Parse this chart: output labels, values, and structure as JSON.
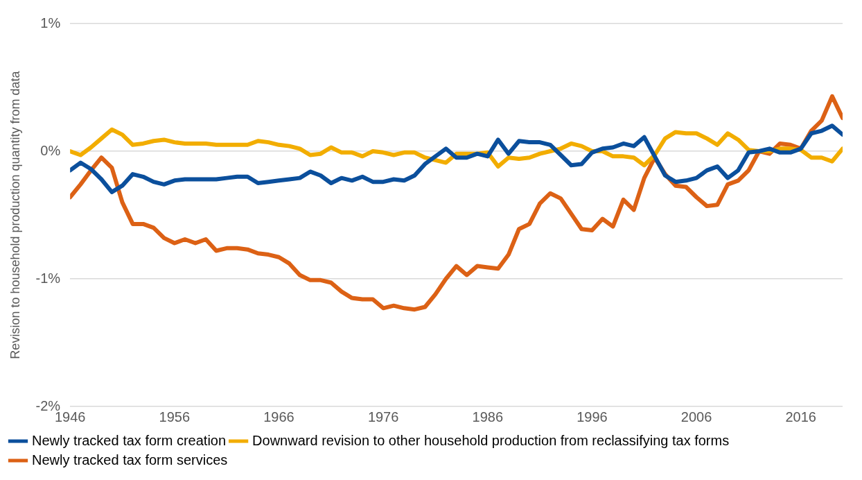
{
  "chart_data": {
    "type": "line",
    "ylabel": "Revision to household production quantity from data",
    "x": [
      1946,
      1947,
      1948,
      1949,
      1950,
      1951,
      1952,
      1953,
      1954,
      1955,
      1956,
      1957,
      1958,
      1959,
      1960,
      1961,
      1962,
      1963,
      1964,
      1965,
      1966,
      1967,
      1968,
      1969,
      1970,
      1971,
      1972,
      1973,
      1974,
      1975,
      1976,
      1977,
      1978,
      1979,
      1980,
      1981,
      1982,
      1983,
      1984,
      1985,
      1986,
      1987,
      1988,
      1989,
      1990,
      1991,
      1992,
      1993,
      1994,
      1995,
      1996,
      1997,
      1998,
      1999,
      2000,
      2001,
      2002,
      2003,
      2004,
      2005,
      2006,
      2007,
      2008,
      2009,
      2010,
      2011,
      2012,
      2013,
      2014,
      2015,
      2016,
      2017,
      2018,
      2019,
      2020
    ],
    "xlim": [
      1946,
      2020
    ],
    "xticks": [
      1946,
      1956,
      1966,
      1976,
      1986,
      1996,
      2006,
      2016
    ],
    "ylim": [
      -2,
      1
    ],
    "yticks": [
      {
        "value": 1,
        "label": "1%"
      },
      {
        "value": 0,
        "label": "0%"
      },
      {
        "value": -1,
        "label": "-1%"
      },
      {
        "value": -2,
        "label": "-2%"
      }
    ],
    "grid": "y",
    "legend": "bottom left",
    "marker": "none",
    "line_style": "solid",
    "series": [
      {
        "name": "Newly tracked tax form creation",
        "color": "#0b4f9c",
        "values": [
          -0.15,
          -0.09,
          -0.14,
          -0.22,
          -0.32,
          -0.27,
          -0.18,
          -0.2,
          -0.24,
          -0.26,
          -0.23,
          -0.22,
          -0.22,
          -0.22,
          -0.22,
          -0.21,
          -0.2,
          -0.2,
          -0.25,
          -0.24,
          -0.23,
          -0.22,
          -0.21,
          -0.16,
          -0.19,
          -0.25,
          -0.21,
          -0.23,
          -0.2,
          -0.24,
          -0.24,
          -0.22,
          -0.23,
          -0.19,
          -0.1,
          -0.04,
          0.02,
          -0.05,
          -0.05,
          -0.02,
          -0.04,
          0.09,
          -0.02,
          0.08,
          0.07,
          0.07,
          0.05,
          -0.03,
          -0.11,
          -0.1,
          -0.01,
          0.02,
          0.03,
          0.06,
          0.04,
          0.11,
          -0.04,
          -0.19,
          -0.24,
          -0.23,
          -0.21,
          -0.15,
          -0.12,
          -0.21,
          -0.15,
          -0.01,
          0.0,
          0.02,
          -0.01,
          -0.01,
          0.02,
          0.14,
          0.16,
          0.2,
          0.13
        ]
      },
      {
        "name": "Downward revision to other household production from reclassifying tax forms",
        "color": "#f2ad00",
        "values": [
          0.0,
          -0.03,
          0.03,
          0.1,
          0.17,
          0.13,
          0.05,
          0.06,
          0.08,
          0.09,
          0.07,
          0.06,
          0.06,
          0.06,
          0.05,
          0.05,
          0.05,
          0.05,
          0.08,
          0.07,
          0.05,
          0.04,
          0.02,
          -0.03,
          -0.02,
          0.03,
          -0.01,
          -0.01,
          -0.04,
          0.0,
          -0.01,
          -0.03,
          -0.01,
          -0.01,
          -0.05,
          -0.07,
          -0.09,
          -0.02,
          -0.02,
          -0.02,
          -0.01,
          -0.12,
          -0.05,
          -0.06,
          -0.05,
          -0.02,
          0.0,
          0.02,
          0.06,
          0.04,
          0.0,
          0.0,
          -0.04,
          -0.04,
          -0.05,
          -0.11,
          -0.03,
          0.1,
          0.15,
          0.14,
          0.14,
          0.1,
          0.05,
          0.14,
          0.09,
          0.01,
          0.0,
          0.0,
          0.02,
          0.02,
          0.01,
          -0.05,
          -0.05,
          -0.08,
          0.02
        ]
      },
      {
        "name": "Newly tracked tax form services",
        "color": "#dc6115",
        "values": [
          -0.36,
          -0.26,
          -0.15,
          -0.05,
          -0.13,
          -0.4,
          -0.57,
          -0.57,
          -0.6,
          -0.68,
          -0.72,
          -0.69,
          -0.72,
          -0.69,
          -0.78,
          -0.76,
          -0.76,
          -0.77,
          -0.8,
          -0.81,
          -0.83,
          -0.88,
          -0.97,
          -1.01,
          -1.01,
          -1.03,
          -1.1,
          -1.15,
          -1.16,
          -1.16,
          -1.23,
          -1.21,
          -1.23,
          -1.24,
          -1.22,
          -1.12,
          -1.0,
          -0.9,
          -0.97,
          -0.9,
          -0.91,
          -0.92,
          -0.81,
          -0.61,
          -0.57,
          -0.41,
          -0.33,
          -0.37,
          -0.49,
          -0.61,
          -0.62,
          -0.53,
          -0.59,
          -0.38,
          -0.46,
          -0.21,
          -0.05,
          -0.18,
          -0.27,
          -0.28,
          -0.36,
          -0.43,
          -0.42,
          -0.26,
          -0.23,
          -0.15,
          0.0,
          -0.02,
          0.06,
          0.05,
          0.02,
          0.16,
          0.24,
          0.43,
          0.26
        ]
      }
    ]
  }
}
